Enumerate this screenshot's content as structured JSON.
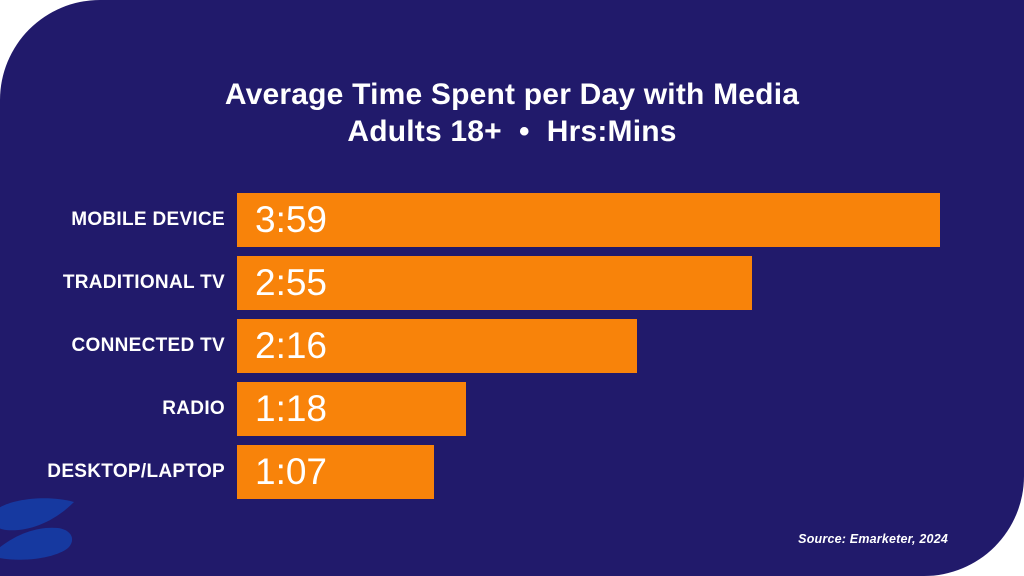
{
  "card": {
    "background_color": "#211a6b",
    "accent_color": "#f8830a",
    "text_color": "#ffffff"
  },
  "header": {
    "title": "Average Time Spent per Day with Media",
    "subtitle": "Adults 18+  •  Hrs:Mins"
  },
  "chart_data": {
    "type": "bar",
    "orientation": "horizontal",
    "title": "Average Time Spent per Day with Media",
    "subtitle": "Adults 18+ • Hrs:Mins",
    "unit": "Hrs:Mins",
    "categories": [
      "MOBILE DEVICE",
      "TRADITIONAL TV",
      "CONNECTED TV",
      "RADIO",
      "DESKTOP/LAPTOP"
    ],
    "values": [
      "3:59",
      "2:55",
      "2:16",
      "1:18",
      "1:07"
    ],
    "values_minutes": [
      239,
      175,
      136,
      78,
      67
    ],
    "axis_max_minutes": 239,
    "bar_color": "#f8830a",
    "value_label_color": "#ffffff",
    "category_label_color": "#ffffff",
    "grid": false,
    "legend": "none",
    "source": "Source: Emarketer, 2024"
  },
  "footer": {
    "source": "Source: Emarketer, 2024"
  },
  "logo": {
    "name": "s-logo",
    "color": "#1639a0"
  }
}
